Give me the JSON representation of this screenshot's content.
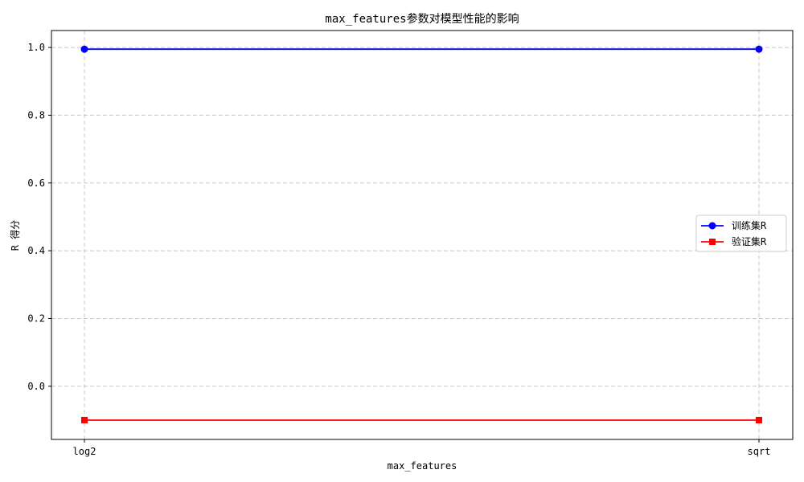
{
  "chart_data": {
    "type": "line",
    "title": "max_features参数对模型性能的影响",
    "xlabel": "max_features",
    "ylabel": "R 得分",
    "categories": [
      "log2",
      "sqrt"
    ],
    "ylim": [
      -0.157,
      1.05
    ],
    "yticks": [
      0.0,
      0.2,
      0.4,
      0.6,
      0.8,
      1.0
    ],
    "yticklabels": [
      "0.0",
      "0.2",
      "0.4",
      "0.6",
      "0.8",
      "1.0"
    ],
    "grid": true,
    "legend_position": "center-right",
    "series": [
      {
        "name": "训练集R",
        "values": [
          0.995,
          0.995
        ],
        "color": "#0000ff",
        "marker": "circle"
      },
      {
        "name": "验证集R",
        "values": [
          -0.1,
          -0.1
        ],
        "color": "#ff0000",
        "marker": "square"
      }
    ]
  }
}
